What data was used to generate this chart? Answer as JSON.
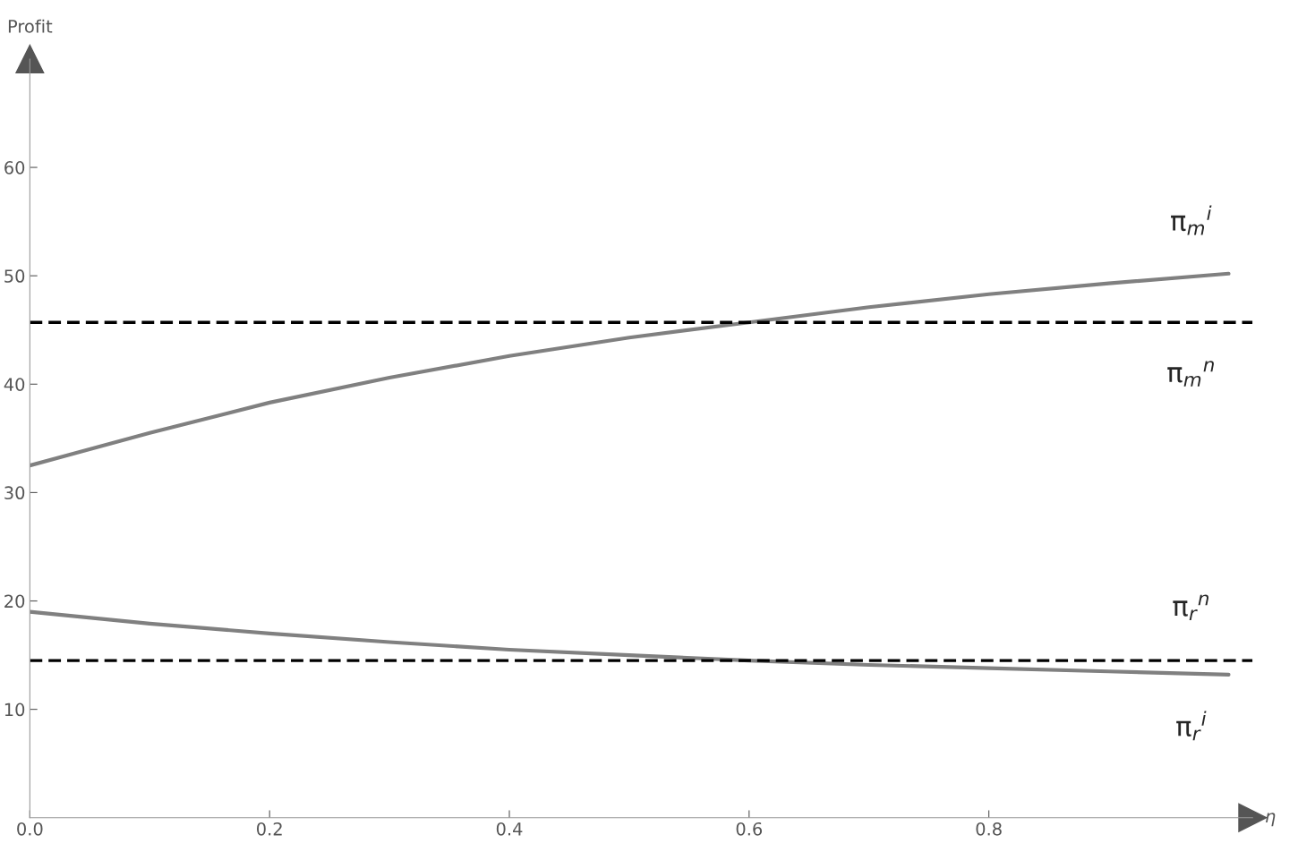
{
  "chart_data": {
    "type": "line",
    "xlabel": "η",
    "ylabel": "Profit",
    "xlim": [
      0,
      1.02
    ],
    "ylim": [
      0,
      70
    ],
    "xticks": [
      {
        "value": 0,
        "label": "0.0"
      },
      0.2,
      0.4,
      0.6,
      0.8
    ],
    "yticks": [
      10,
      20,
      30,
      40,
      50,
      60
    ],
    "grid": false,
    "legend": false,
    "marker": "none",
    "series": [
      {
        "name": "π$_{m}$$^{i}$",
        "color": "#808080",
        "x": [
          0,
          0.1,
          0.2,
          0.3,
          0.4,
          0.5,
          0.6,
          0.7,
          0.8,
          0.9,
          1.0
        ],
        "values": [
          32.5,
          35.5,
          38.3,
          40.6,
          42.6,
          44.3,
          45.7,
          47.1,
          48.3,
          49.3,
          50.2
        ]
      },
      {
        "name": "π$_{r}$$^{i}$",
        "color": "#808080",
        "x": [
          0,
          0.1,
          0.2,
          0.3,
          0.4,
          0.5,
          0.6,
          0.7,
          0.8,
          0.9,
          1.0
        ],
        "values": [
          19.0,
          17.9,
          17.0,
          16.2,
          15.5,
          15.0,
          14.5,
          14.1,
          13.8,
          13.5,
          13.2
        ]
      }
    ],
    "ref_lines": [
      {
        "axis": "y",
        "value": 45.7,
        "color": "#000000",
        "line_style": "dashed",
        "label": "π$_{m}$$^{n}$"
      },
      {
        "axis": "y",
        "value": 14.5,
        "color": "#000000",
        "line_style": "dashed",
        "label": "π$_{r}$$^{n}$"
      }
    ]
  }
}
